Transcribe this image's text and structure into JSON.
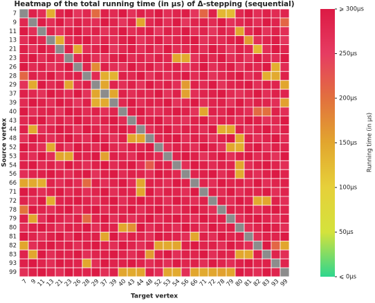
{
  "chart_data": {
    "type": "heatmap",
    "title": "Heatmap of the total running time (in μs) of Δ-stepping (sequential)",
    "x_label": "Target vertex",
    "y_label": "Source vertex",
    "colorbar_label": "Running time (in μs)",
    "categories": [
      "7",
      "9",
      "11",
      "13",
      "21",
      "23",
      "26",
      "28",
      "29",
      "37",
      "39",
      "40",
      "43",
      "44",
      "48",
      "52",
      "53",
      "54",
      "56",
      "66",
      "71",
      "72",
      "78",
      "79",
      "80",
      "81",
      "82",
      "83",
      "93",
      "99"
    ],
    "clim": [
      0,
      300
    ],
    "cticks": [
      {
        "value": 0,
        "label": "⩽ 0μs"
      },
      {
        "value": 50,
        "label": "50μs"
      },
      {
        "value": 100,
        "label": "100μs"
      },
      {
        "value": 150,
        "label": "150μs"
      },
      {
        "value": 200,
        "label": "200μs"
      },
      {
        "value": 250,
        "label": "250μs"
      },
      {
        "value": 300,
        "label": "⩾ 300μs"
      }
    ],
    "colorscale": [
      "#2ed68e",
      "#d4e23c",
      "#e6d03a",
      "#e2a62e",
      "#e2703e",
      "#e63c62",
      "#dc1a44"
    ],
    "missing_color": "#8c8c8c",
    "values": [
      [
        null,
        290,
        270,
        140,
        285,
        300,
        260,
        280,
        205,
        290,
        275,
        300,
        265,
        290,
        280,
        300,
        270,
        285,
        295,
        260,
        210,
        290,
        130,
        125,
        280,
        300,
        270,
        290,
        275,
        285
      ],
      [
        280,
        null,
        295,
        270,
        300,
        265,
        290,
        280,
        270,
        300,
        285,
        260,
        290,
        150,
        280,
        295,
        270,
        300,
        260,
        285,
        290,
        275,
        300,
        265,
        280,
        290,
        270,
        300,
        285,
        210
      ],
      [
        300,
        270,
        null,
        285,
        260,
        290,
        300,
        275,
        290,
        265,
        280,
        300,
        270,
        285,
        295,
        260,
        290,
        280,
        300,
        270,
        285,
        260,
        290,
        275,
        150,
        280,
        300,
        265,
        290,
        270
      ],
      [
        270,
        295,
        280,
        null,
        140,
        275,
        290,
        300,
        265,
        285,
        270,
        290,
        300,
        260,
        280,
        295,
        270,
        285,
        290,
        300,
        265,
        280,
        275,
        290,
        300,
        160,
        270,
        285,
        295,
        260
      ],
      [
        290,
        265,
        300,
        280,
        null,
        290,
        145,
        270,
        285,
        300,
        260,
        280,
        295,
        270,
        290,
        265,
        300,
        275,
        280,
        290,
        270,
        300,
        285,
        260,
        290,
        280,
        130,
        270,
        300,
        285
      ],
      [
        285,
        300,
        270,
        290,
        265,
        null,
        280,
        295,
        270,
        260,
        290,
        300,
        275,
        285,
        270,
        290,
        280,
        150,
        145,
        265,
        290,
        280,
        300,
        270,
        285,
        260,
        295,
        280,
        270,
        300
      ],
      [
        300,
        275,
        290,
        265,
        280,
        300,
        null,
        285,
        175,
        290,
        270,
        265,
        300,
        280,
        295,
        270,
        285,
        290,
        260,
        280,
        300,
        270,
        285,
        295,
        265,
        290,
        280,
        300,
        140,
        275
      ],
      [
        210,
        290,
        280,
        300,
        270,
        285,
        290,
        null,
        275,
        140,
        135,
        290,
        280,
        300,
        265,
        290,
        270,
        285,
        300,
        275,
        290,
        265,
        280,
        290,
        300,
        270,
        285,
        140,
        145,
        290
      ],
      [
        265,
        145,
        300,
        275,
        290,
        150,
        270,
        290,
        null,
        150,
        285,
        270,
        290,
        265,
        300,
        280,
        290,
        270,
        160,
        290,
        275,
        300,
        265,
        285,
        290,
        300,
        270,
        290,
        285,
        150
      ],
      [
        290,
        280,
        265,
        300,
        285,
        270,
        300,
        265,
        150,
        null,
        150,
        290,
        270,
        285,
        280,
        300,
        265,
        290,
        155,
        270,
        285,
        290,
        300,
        275,
        265,
        280,
        300,
        270,
        290,
        285
      ],
      [
        275,
        300,
        290,
        270,
        300,
        285,
        260,
        290,
        140,
        145,
        null,
        280,
        300,
        270,
        290,
        285,
        300,
        265,
        280,
        300,
        270,
        285,
        290,
        265,
        300,
        275,
        290,
        285,
        270,
        155
      ],
      [
        300,
        270,
        285,
        290,
        265,
        300,
        290,
        275,
        290,
        270,
        285,
        null,
        290,
        300,
        275,
        270,
        285,
        300,
        290,
        265,
        150,
        290,
        280,
        300,
        285,
        270,
        205,
        200,
        290,
        270
      ],
      [
        280,
        290,
        300,
        265,
        290,
        275,
        300,
        285,
        270,
        290,
        300,
        275,
        null,
        285,
        290,
        300,
        270,
        280,
        265,
        290,
        300,
        270,
        290,
        285,
        275,
        300,
        290,
        265,
        280,
        300
      ],
      [
        290,
        145,
        270,
        285,
        300,
        290,
        265,
        300,
        285,
        270,
        290,
        300,
        280,
        null,
        270,
        290,
        300,
        275,
        290,
        285,
        270,
        300,
        140,
        150,
        290,
        265,
        285,
        300,
        270,
        290
      ],
      [
        265,
        300,
        290,
        270,
        285,
        300,
        280,
        270,
        300,
        285,
        265,
        290,
        150,
        150,
        null,
        280,
        290,
        300,
        270,
        290,
        285,
        265,
        290,
        300,
        145,
        290,
        270,
        285,
        300,
        275
      ],
      [
        300,
        285,
        270,
        145,
        290,
        265,
        300,
        290,
        275,
        300,
        280,
        270,
        290,
        285,
        300,
        null,
        270,
        290,
        285,
        270,
        300,
        290,
        265,
        150,
        140,
        285,
        300,
        270,
        290,
        285
      ],
      [
        285,
        270,
        300,
        270,
        150,
        145,
        290,
        285,
        300,
        155,
        290,
        285,
        270,
        300,
        290,
        275,
        null,
        285,
        300,
        290,
        265,
        285,
        300,
        270,
        290,
        300,
        275,
        290,
        265,
        300
      ],
      [
        290,
        300,
        275,
        290,
        270,
        300,
        285,
        270,
        290,
        300,
        275,
        290,
        300,
        270,
        220,
        290,
        285,
        null,
        270,
        300,
        290,
        275,
        290,
        285,
        150,
        270,
        290,
        300,
        285,
        270
      ],
      [
        270,
        285,
        290,
        300,
        285,
        270,
        290,
        300,
        265,
        290,
        300,
        275,
        290,
        285,
        270,
        300,
        290,
        280,
        null,
        285,
        290,
        300,
        270,
        290,
        145,
        285,
        270,
        290,
        300,
        285
      ],
      [
        150,
        145,
        140,
        285,
        270,
        290,
        275,
        205,
        290,
        270,
        285,
        300,
        270,
        150,
        290,
        285,
        270,
        300,
        290,
        null,
        285,
        270,
        300,
        285,
        290,
        275,
        300,
        270,
        285,
        290
      ],
      [
        300,
        290,
        270,
        285,
        300,
        275,
        290,
        270,
        285,
        300,
        270,
        290,
        285,
        150,
        300,
        270,
        290,
        285,
        270,
        300,
        null,
        290,
        275,
        300,
        270,
        290,
        285,
        300,
        270,
        285
      ],
      [
        285,
        270,
        300,
        140,
        285,
        290,
        300,
        285,
        270,
        290,
        300,
        270,
        290,
        300,
        285,
        290,
        270,
        300,
        285,
        270,
        290,
        null,
        290,
        270,
        300,
        285,
        145,
        150,
        290,
        270
      ],
      [
        195,
        300,
        285,
        270,
        290,
        300,
        270,
        290,
        300,
        275,
        290,
        285,
        300,
        270,
        290,
        300,
        285,
        270,
        290,
        300,
        285,
        270,
        null,
        290,
        285,
        300,
        270,
        290,
        300,
        285
      ],
      [
        290,
        150,
        270,
        300,
        285,
        270,
        290,
        205,
        285,
        300,
        270,
        290,
        270,
        285,
        300,
        275,
        290,
        300,
        285,
        270,
        300,
        285,
        290,
        null,
        270,
        290,
        300,
        285,
        270,
        290
      ],
      [
        270,
        290,
        300,
        285,
        270,
        290,
        285,
        300,
        270,
        290,
        285,
        150,
        170,
        300,
        270,
        290,
        285,
        270,
        300,
        285,
        270,
        300,
        285,
        290,
        null,
        270,
        285,
        300,
        290,
        270
      ],
      [
        300,
        285,
        270,
        290,
        300,
        270,
        300,
        285,
        290,
        150,
        300,
        270,
        290,
        285,
        270,
        300,
        290,
        285,
        270,
        150,
        290,
        270,
        300,
        285,
        290,
        null,
        270,
        290,
        285,
        300
      ],
      [
        150,
        270,
        290,
        300,
        285,
        290,
        270,
        290,
        300,
        285,
        270,
        300,
        285,
        270,
        290,
        150,
        145,
        150,
        290,
        300,
        285,
        290,
        270,
        300,
        285,
        270,
        null,
        300,
        210,
        150
      ],
      [
        285,
        150,
        300,
        270,
        290,
        285,
        300,
        270,
        285,
        290,
        300,
        285,
        270,
        290,
        160,
        285,
        300,
        270,
        290,
        285,
        300,
        270,
        290,
        285,
        150,
        145,
        290,
        null,
        285,
        270
      ],
      [
        290,
        300,
        285,
        270,
        300,
        290,
        285,
        150,
        270,
        300,
        285,
        290,
        300,
        285,
        270,
        290,
        270,
        300,
        285,
        290,
        270,
        300,
        285,
        270,
        290,
        300,
        285,
        290,
        null,
        285
      ],
      [
        270,
        290,
        300,
        285,
        270,
        300,
        290,
        285,
        300,
        270,
        290,
        150,
        145,
        150,
        290,
        270,
        150,
        145,
        270,
        150,
        145,
        150,
        155,
        150,
        300,
        285,
        270,
        300,
        285,
        null
      ]
    ]
  }
}
